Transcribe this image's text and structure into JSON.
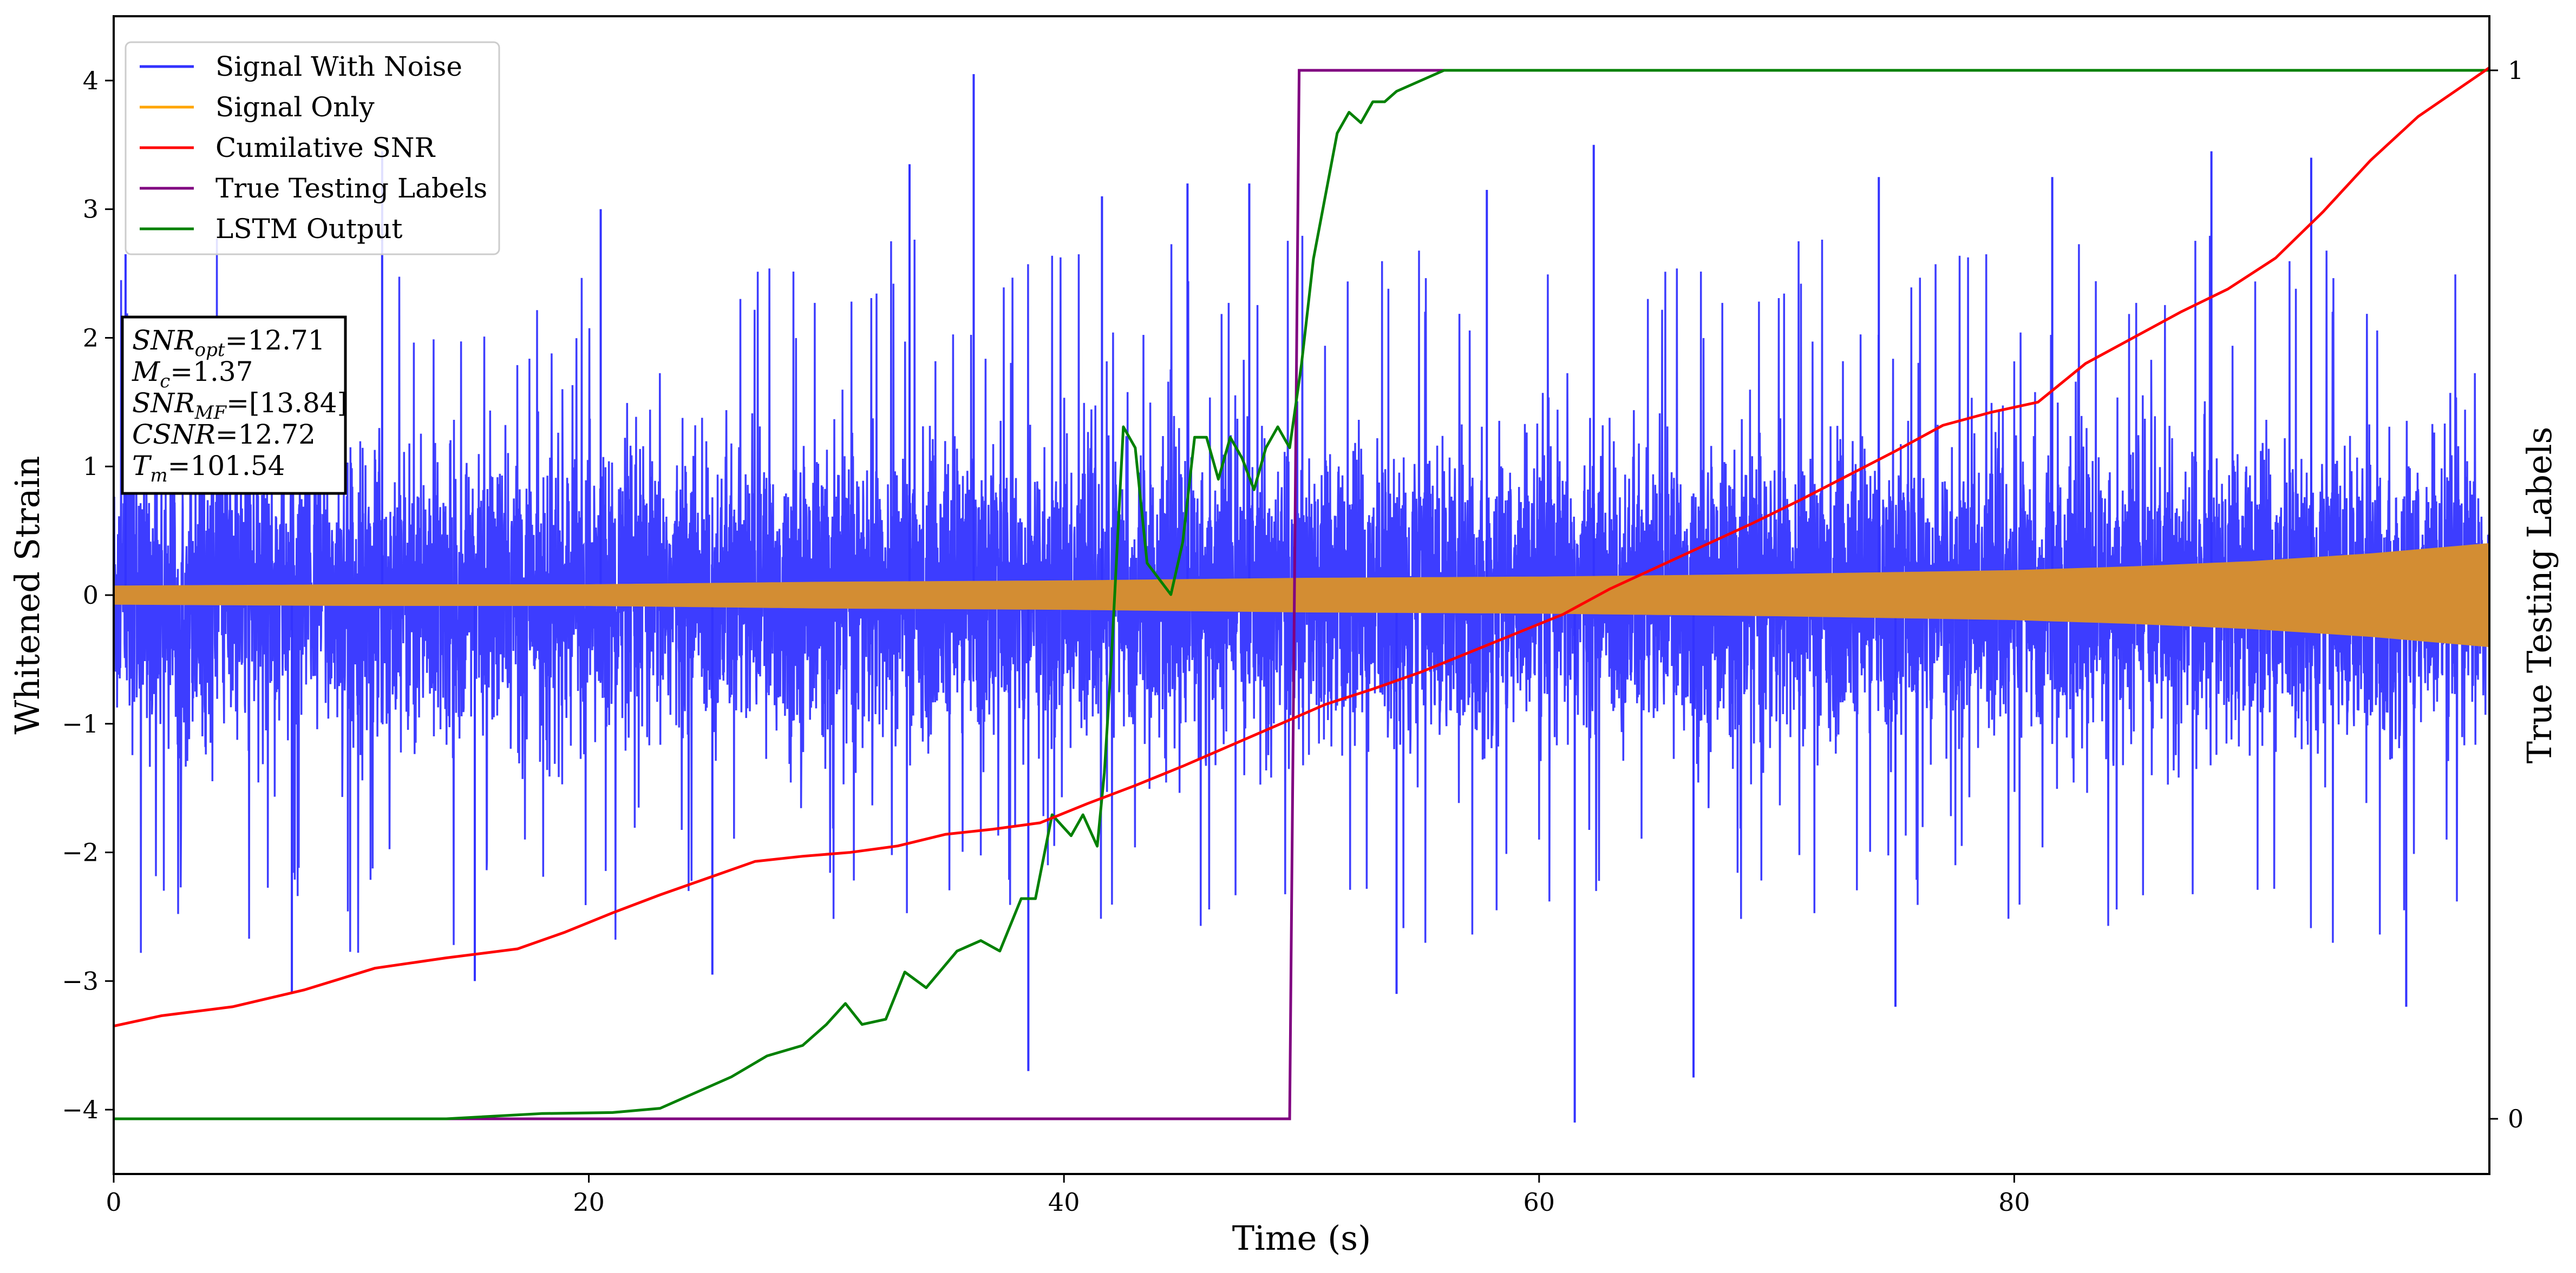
{
  "chart_data": {
    "type": "line",
    "xlabel": "Time (s)",
    "ylabel": "Whitened Strain",
    "y2label": "True Testing Labels",
    "xlim": [
      0,
      100
    ],
    "ylim": [
      -4.5,
      4.5
    ],
    "y2lim": [
      -0.05,
      1.05
    ],
    "xticks": [
      0,
      20,
      40,
      60,
      80
    ],
    "yticks": [
      -4,
      -3,
      -2,
      -1,
      0,
      1,
      2,
      3,
      4
    ],
    "y2ticks": [
      0,
      1
    ],
    "grid": false,
    "legend_position": "upper left",
    "series": [
      {
        "name": "Signal With Noise",
        "color": "#3333ff",
        "axis": "left",
        "kind": "noise",
        "spread": 0.55,
        "extremes": [
          {
            "x": 0.5,
            "y": 2.65
          },
          {
            "x": 11.3,
            "y": 3.45
          },
          {
            "x": 20.5,
            "y": 3.0
          },
          {
            "x": 36.2,
            "y": 4.05
          },
          {
            "x": 38.5,
            "y": -3.7
          },
          {
            "x": 41.6,
            "y": 3.1
          },
          {
            "x": 45.2,
            "y": 3.2
          },
          {
            "x": 47.8,
            "y": 3.2
          },
          {
            "x": 57.8,
            "y": 3.15
          },
          {
            "x": 62.3,
            "y": 3.5
          },
          {
            "x": 61.5,
            "y": -4.1
          },
          {
            "x": 66.5,
            "y": -3.75
          },
          {
            "x": 74.3,
            "y": 3.25
          },
          {
            "x": 81.6,
            "y": 3.25
          },
          {
            "x": 92.5,
            "y": 3.4
          },
          {
            "x": 7.5,
            "y": -3.1
          },
          {
            "x": 15.2,
            "y": -3.0
          },
          {
            "x": 25.2,
            "y": -2.95
          },
          {
            "x": 54.0,
            "y": -3.1
          },
          {
            "x": 75.0,
            "y": -3.2
          },
          {
            "x": 96.5,
            "y": -3.2
          },
          {
            "x": 88.3,
            "y": 3.45
          },
          {
            "x": 33.5,
            "y": 3.35
          }
        ]
      },
      {
        "name": "Signal Only",
        "color": "#ffa500",
        "axis": "left",
        "kind": "envelope",
        "x": [
          0,
          10,
          20,
          30,
          40,
          50,
          60,
          70,
          80,
          85,
          90,
          95,
          100
        ],
        "amplitude": [
          0.07,
          0.08,
          0.08,
          0.1,
          0.11,
          0.13,
          0.14,
          0.16,
          0.19,
          0.22,
          0.26,
          0.32,
          0.4
        ]
      },
      {
        "name": "Cumilative SNR",
        "color": "#ff0000",
        "axis": "left",
        "x": [
          0,
          2,
          5,
          8,
          11,
          14,
          17,
          19,
          21,
          23,
          25,
          27,
          29,
          31,
          33,
          35,
          37,
          39,
          41,
          43,
          45,
          47,
          49,
          51,
          53,
          55,
          57,
          59,
          61,
          63,
          65,
          67,
          69,
          71,
          73,
          75,
          77,
          79,
          81,
          83,
          85,
          87,
          89,
          91,
          93,
          95,
          97,
          100
        ],
        "y": [
          -3.35,
          -3.27,
          -3.2,
          -3.07,
          -2.9,
          -2.82,
          -2.75,
          -2.62,
          -2.47,
          -2.33,
          -2.2,
          -2.07,
          -2.03,
          -2.0,
          -1.95,
          -1.86,
          -1.82,
          -1.77,
          -1.62,
          -1.48,
          -1.33,
          -1.17,
          -1.01,
          -0.85,
          -0.73,
          -0.6,
          -0.45,
          -0.3,
          -0.15,
          0.05,
          0.22,
          0.39,
          0.56,
          0.74,
          0.93,
          1.12,
          1.32,
          1.42,
          1.5,
          1.8,
          2.0,
          2.2,
          2.38,
          2.62,
          2.98,
          3.38,
          3.72,
          4.1
        ]
      },
      {
        "name": "True Testing Labels",
        "color": "#800080",
        "axis": "right",
        "x": [
          0,
          49.5,
          49.9,
          100
        ],
        "y": [
          0,
          0,
          1,
          1
        ]
      },
      {
        "name": "LSTM Output",
        "color": "#008000",
        "axis": "right",
        "x": [
          0,
          14,
          18,
          21,
          23,
          25,
          26,
          27.5,
          29,
          30,
          30.8,
          31.5,
          32.5,
          33.3,
          34.2,
          35.5,
          36.5,
          37.3,
          38.2,
          38.8,
          39.5,
          40.3,
          40.8,
          41.4,
          41.7,
          42.0,
          42.5,
          43.0,
          43.5,
          44.5,
          45.0,
          45.5,
          46.0,
          46.5,
          47.0,
          47.5,
          48.0,
          48.5,
          49.0,
          49.5,
          50.0,
          50.5,
          51.0,
          51.5,
          52.0,
          52.5,
          53.0,
          53.5,
          54.0,
          55.0,
          56.0,
          57.0,
          58.0,
          59.0,
          60.0,
          62.0,
          100
        ],
        "y": [
          0,
          0,
          0.005,
          0.006,
          0.01,
          0.03,
          0.04,
          0.06,
          0.07,
          0.09,
          0.11,
          0.09,
          0.095,
          0.14,
          0.125,
          0.16,
          0.17,
          0.16,
          0.21,
          0.21,
          0.29,
          0.27,
          0.29,
          0.26,
          0.33,
          0.44,
          0.66,
          0.64,
          0.53,
          0.5,
          0.55,
          0.65,
          0.65,
          0.61,
          0.65,
          0.63,
          0.6,
          0.64,
          0.66,
          0.64,
          0.72,
          0.82,
          0.88,
          0.94,
          0.96,
          0.95,
          0.97,
          0.97,
          0.98,
          0.99,
          1.0,
          1.0,
          1.0,
          1.0,
          1.0,
          1.0,
          1.0
        ]
      }
    ],
    "annotation": [
      {
        "base": "SNR",
        "sub": "opt",
        "rest": "=12.71"
      },
      {
        "base": "M",
        "sub": "c",
        "rest": "=1.37"
      },
      {
        "base": "SNR",
        "sub": "MF",
        "rest": "=[13.84]"
      },
      {
        "base": "CSNR",
        "sub": "",
        "rest": "=12.72"
      },
      {
        "base": "T",
        "sub": "m",
        "rest": "=101.54"
      }
    ]
  }
}
